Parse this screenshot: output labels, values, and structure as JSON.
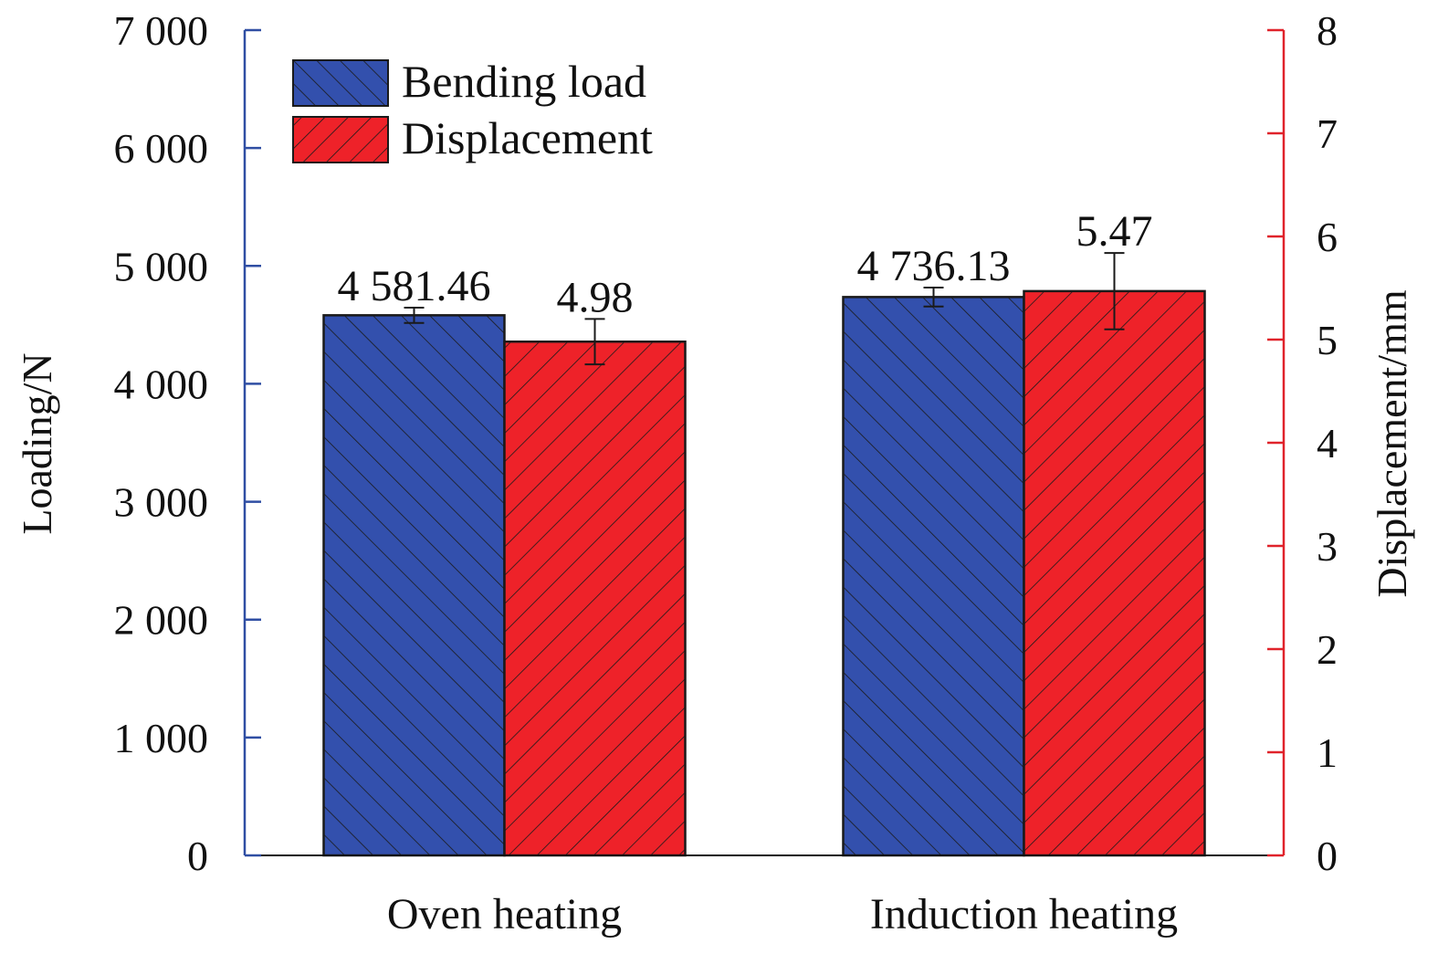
{
  "chart_data": {
    "type": "bar",
    "title": "",
    "categories": [
      "Oven heating",
      "Induction heating"
    ],
    "series": [
      {
        "name": "Bending load",
        "axis": "left",
        "color": "#3350ad",
        "hatch": "backslash",
        "values": [
          4581.46,
          4736.13
        ],
        "errors": [
          65,
          80
        ],
        "value_labels": [
          "4 581.46",
          "4 736.13"
        ]
      },
      {
        "name": "Displacement",
        "axis": "right",
        "color": "#ee2229",
        "hatch": "slash",
        "values": [
          4.98,
          5.47
        ],
        "errors": [
          0.22,
          0.37
        ],
        "value_labels": [
          "4.98",
          "5.47"
        ]
      }
    ],
    "y_left": {
      "label": "Loading/N",
      "range": [
        0,
        7000
      ],
      "ticks": [
        0,
        1000,
        2000,
        3000,
        4000,
        5000,
        6000,
        7000
      ],
      "tick_labels": [
        "0",
        "1 000",
        "2 000",
        "3 000",
        "4 000",
        "5 000",
        "6 000",
        "7 000"
      ],
      "color": "#2f4ea3"
    },
    "y_right": {
      "label": "Displacement/mm",
      "range": [
        0,
        8
      ],
      "ticks": [
        0,
        1,
        2,
        3,
        4,
        5,
        6,
        7,
        8
      ],
      "tick_labels": [
        "0",
        "1",
        "2",
        "3",
        "4",
        "5",
        "6",
        "7",
        "8"
      ],
      "color": "#e0232b"
    },
    "legend": {
      "position": "top-left",
      "entries": [
        "Bending load",
        "Displacement"
      ]
    },
    "grid": false
  }
}
